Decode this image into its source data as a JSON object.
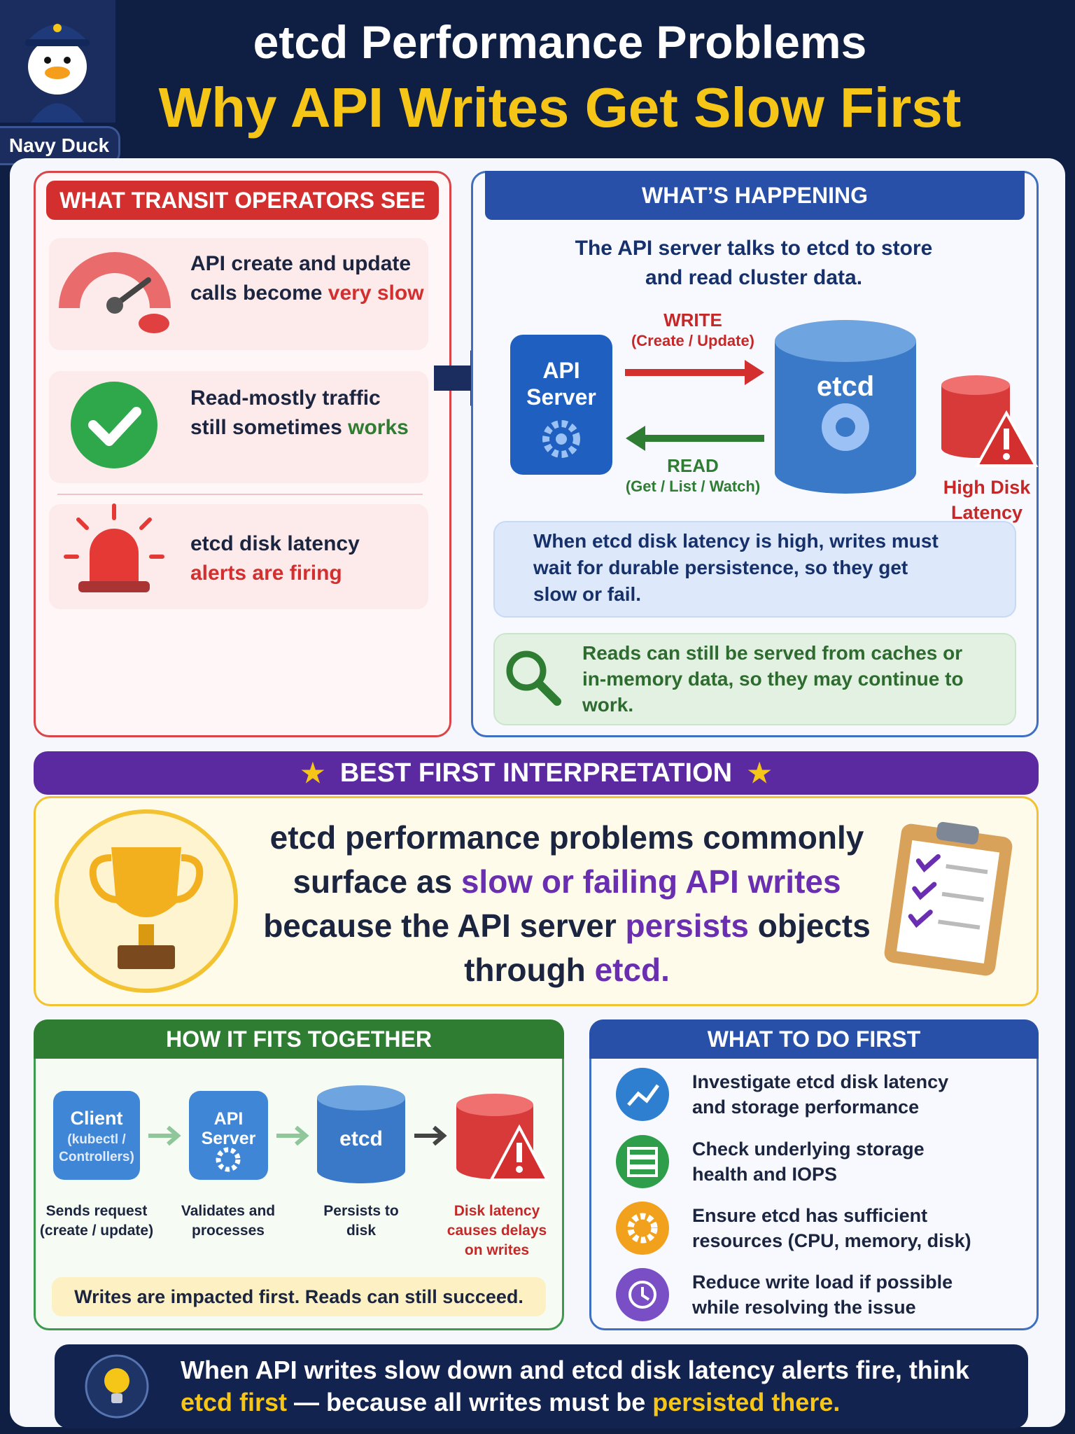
{
  "header": {
    "badge": "Navy Duck",
    "title": "etcd Performance Problems",
    "subtitle": "Why API Writes Get Slow First"
  },
  "symptoms": {
    "title": "WHAT TRANSIT OPERATORS SEE",
    "items": [
      {
        "text": "API create and update calls become",
        "highlight": "very slow",
        "highlight_color": "#d32f2f"
      },
      {
        "text": "Read-mostly traffic still sometimes",
        "highlight": "works",
        "highlight_color": "#2e7d32"
      },
      {
        "text": "etcd disk latency",
        "highlight": "alerts are firing",
        "highlight_color": "#d32f2f"
      }
    ]
  },
  "happening": {
    "title": "WHAT’S HAPPENING",
    "intro": "The API server talks to etcd to store and read cluster data.",
    "api_server": "API Server",
    "etcd": "etcd",
    "write": {
      "label": "WRITE",
      "detail": "(Create / Update)"
    },
    "read": {
      "label": "READ",
      "detail": "(Get / List / Watch)"
    },
    "disk_alert": "High Disk Latency",
    "write_note": "When etcd disk latency is high, writes must wait for durable persistence, so they get slow or fail.",
    "read_note": "Reads can still be served from caches or in-memory data, so they may continue to work."
  },
  "interpretation": {
    "title": "BEST FIRST INTERPRETATION",
    "parts": [
      {
        "text": "etcd performance problems commonly surface as ",
        "color": "#1c2540"
      },
      {
        "text": "slow or failing API writes",
        "color": "#6a2fb0"
      },
      {
        "text": " because the API server ",
        "color": "#1c2540"
      },
      {
        "text": "persists",
        "color": "#6a2fb0"
      },
      {
        "text": " objects through ",
        "color": "#1c2540"
      },
      {
        "text": "etcd.",
        "color": "#6a2fb0"
      }
    ]
  },
  "flow": {
    "title": "HOW IT FITS TOGETHER",
    "steps": [
      {
        "label": "Client",
        "sub": "(kubectl / Controllers)",
        "caption": "Sends request (create / update)"
      },
      {
        "label": "API Server",
        "caption": "Validates and processes"
      },
      {
        "label": "etcd",
        "caption": "Persists to disk"
      },
      {
        "caption": "Disk latency causes delays on writes"
      }
    ],
    "note": "Writes are impacted first. Reads can still succeed."
  },
  "actions": {
    "title": "WHAT TO DO FIRST",
    "items": [
      {
        "text": "Investigate etcd disk latency and storage performance",
        "color": "#2f7fd0"
      },
      {
        "text": "Check underlying storage health and IOPS",
        "color": "#2e9e4a"
      },
      {
        "text": "Ensure etcd has sufficient resources (CPU, memory, disk)",
        "color": "#f2a11c"
      },
      {
        "text": "Reduce write load if possible while resolving the issue",
        "color": "#7a4fc6"
      }
    ]
  },
  "footer": {
    "parts": [
      {
        "text": "When API writes slow down and etcd disk latency alerts fire, think ",
        "color": "#ffffff"
      },
      {
        "text": "etcd first",
        "color": "#f5c518"
      },
      {
        "text": " — because all writes must be ",
        "color": "#ffffff"
      },
      {
        "text": "persisted there.",
        "color": "#f5c518"
      }
    ]
  }
}
